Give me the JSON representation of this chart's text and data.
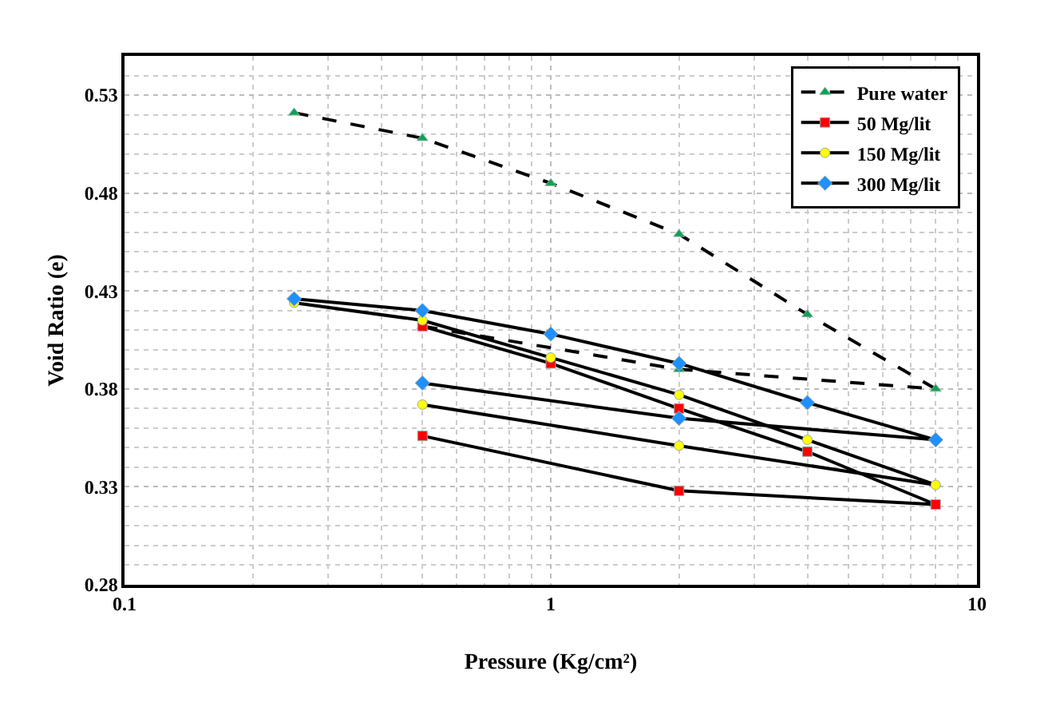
{
  "chart_data": {
    "type": "line",
    "xlabel": "Pressure (Kg/cm²)",
    "ylabel": "Void Ratio (e)",
    "log": "x",
    "xlim": [
      0.1,
      10
    ],
    "xticks": [
      0.1,
      1,
      10
    ],
    "ylim": [
      0.28,
      0.55
    ],
    "yticks": [
      0.28,
      0.33,
      0.38,
      0.43,
      0.48,
      0.53
    ],
    "grid": true,
    "legend": "top right",
    "series": [
      {
        "name": "Pure water",
        "color": "#00a650",
        "marker": "triangle",
        "line_style": "dashed",
        "x": [
          0.25,
          0.5,
          1,
          2,
          4,
          8,
          2,
          0.5
        ],
        "values": [
          0.521,
          0.508,
          0.485,
          0.459,
          0.418,
          0.38,
          0.39,
          0.412
        ]
      },
      {
        "name": "50 Mg/lit",
        "color": "#ff0000",
        "marker": "square",
        "line_style": "solid",
        "x": [
          0.5,
          1,
          2,
          4,
          8,
          2,
          0.5
        ],
        "values": [
          0.412,
          0.393,
          0.37,
          0.348,
          0.321,
          0.328,
          0.356
        ]
      },
      {
        "name": "150 Mg/lit",
        "color": "#ffff00",
        "marker": "circle",
        "line_style": "solid",
        "x": [
          0.25,
          0.5,
          1,
          2,
          4,
          8,
          2,
          0.5
        ],
        "values": [
          0.424,
          0.415,
          0.396,
          0.377,
          0.354,
          0.331,
          0.351,
          0.372
        ]
      },
      {
        "name": "300 Mg/lit",
        "color": "#1e90ff",
        "marker": "diamond",
        "line_style": "solid",
        "x": [
          0.25,
          0.5,
          1,
          2,
          4,
          8,
          2,
          0.5
        ],
        "values": [
          0.426,
          0.42,
          0.408,
          0.393,
          0.373,
          0.354,
          0.365,
          0.383
        ]
      }
    ]
  }
}
